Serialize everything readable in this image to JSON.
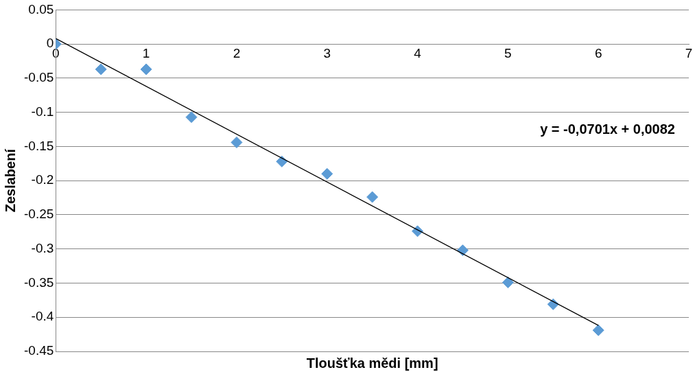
{
  "chart_data": {
    "type": "scatter",
    "xlabel": "Tloušťka mědi [mm]",
    "ylabel": "Zeslabení",
    "x": [
      0,
      0.5,
      1,
      1.5,
      2,
      2.5,
      3,
      3.5,
      4,
      4.5,
      5,
      5.5,
      6
    ],
    "series": [
      {
        "color": "#5b9bd5",
        "marker": "diamond",
        "values": [
          0,
          -0.037,
          -0.037,
          -0.107,
          -0.144,
          -0.172,
          -0.19,
          -0.224,
          -0.274,
          -0.302,
          -0.349,
          -0.381,
          -0.419
        ]
      },
      {
        "type": "line",
        "color": "#000000",
        "marker": "none",
        "x": [
          0,
          6
        ],
        "values": [
          0.008,
          -0.412
        ]
      }
    ],
    "annotations": [
      "y = -0,0701x + 0,0082"
    ],
    "xlim": [
      0,
      7
    ],
    "xticks": [
      0,
      1,
      2,
      3,
      4,
      5,
      6,
      7
    ],
    "ylim": [
      -0.45,
      0.05
    ],
    "yticks": [
      0.05,
      0,
      -0.05,
      -0.1,
      -0.15,
      -0.2,
      -0.25,
      -0.3,
      -0.35,
      -0.4,
      -0.45
    ],
    "grid": "y",
    "legend": false
  }
}
